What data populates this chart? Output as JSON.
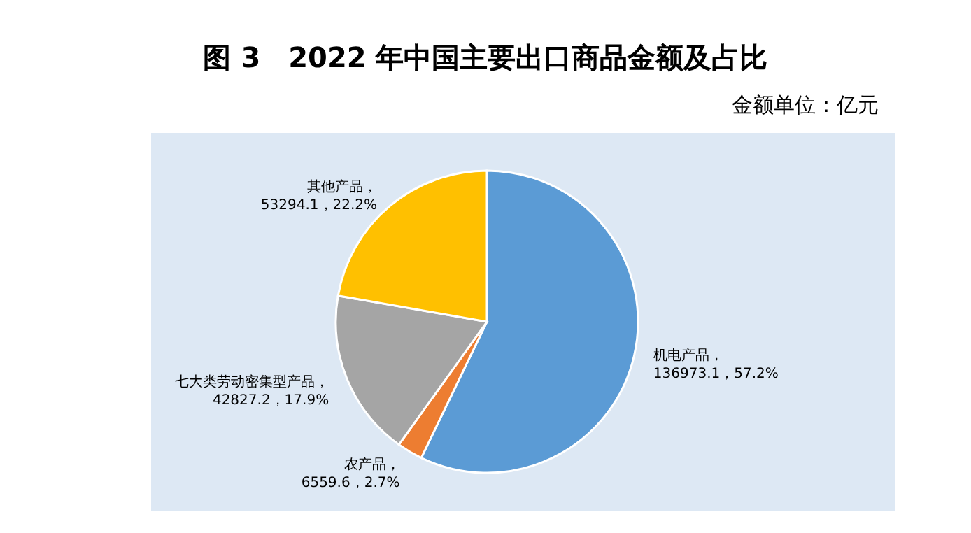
{
  "chart_data": {
    "type": "pie",
    "title": "图 3　2022 年中国主要出口商品金额及占比",
    "subtitle": "金额单位：亿元",
    "categories": [
      "机电产品",
      "农产品",
      "七大类劳动密集型产品",
      "其他产品"
    ],
    "values": [
      136973.1,
      6559.6,
      42827.2,
      53294.1
    ],
    "value_labels": [
      "，\n136973.1，57.2%",
      "，\n6559.6，2.7%",
      "，\n42827.2，17.9%",
      "，\n53294.1，22.2%"
    ],
    "colors": [
      "#5b9bd5",
      "#ed7d31",
      "#a5a5a5",
      "#ffc000"
    ],
    "legend": false
  }
}
